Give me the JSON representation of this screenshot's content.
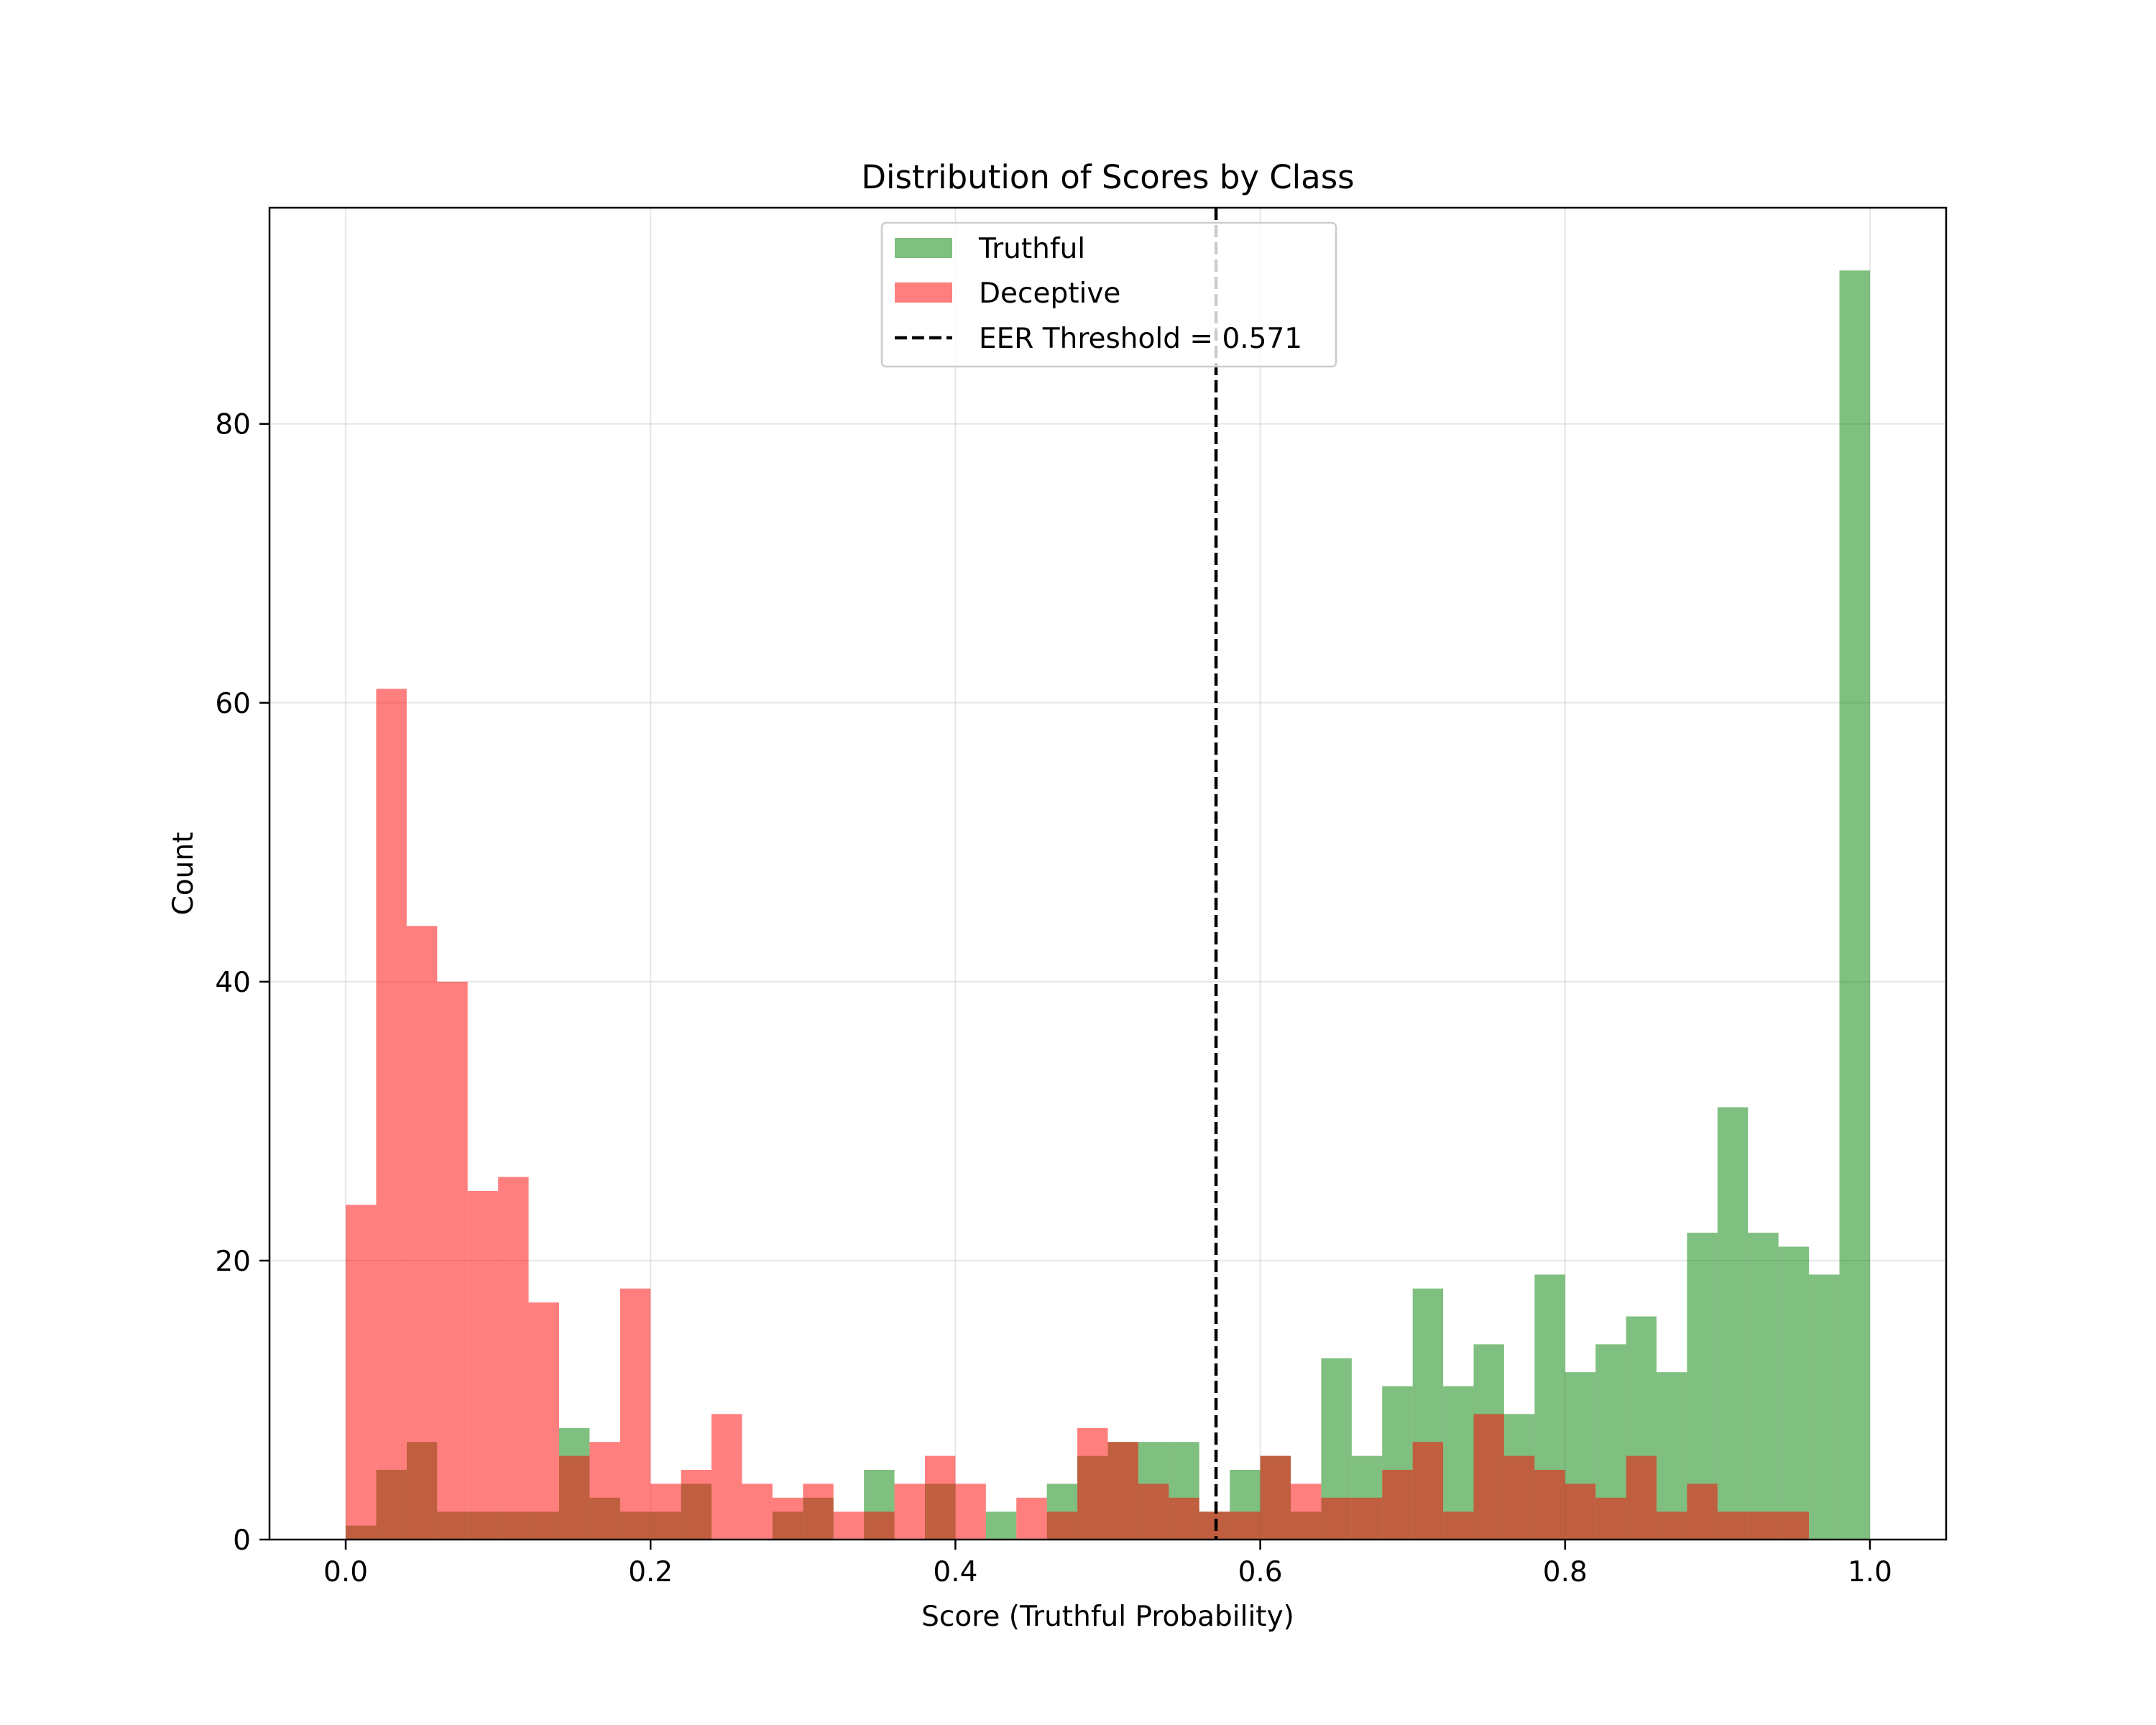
{
  "chart_data": {
    "type": "bar",
    "title": "Distribution of Scores by Class",
    "xlabel": "Score (Truthful Probability)",
    "ylabel": "Count",
    "xlim": [
      -0.05,
      1.05
    ],
    "ylim": [
      0,
      95.5
    ],
    "xticks": [
      0.0,
      0.2,
      0.4,
      0.6,
      0.8,
      1.0
    ],
    "xtick_labels": [
      "0.0",
      "0.2",
      "0.4",
      "0.6",
      "0.8",
      "1.0"
    ],
    "yticks": [
      0,
      20,
      40,
      60,
      80
    ],
    "ytick_labels": [
      "0",
      "20",
      "40",
      "60",
      "80"
    ],
    "grid": true,
    "legend_position": "top-center",
    "bin_edges": [
      0.0,
      0.02,
      0.04,
      0.06,
      0.08,
      0.1,
      0.12,
      0.14,
      0.16,
      0.18,
      0.2,
      0.22,
      0.24,
      0.26,
      0.28,
      0.3,
      0.32,
      0.34,
      0.36,
      0.38,
      0.4,
      0.42,
      0.44,
      0.46,
      0.48,
      0.5,
      0.52,
      0.54,
      0.56,
      0.58,
      0.6,
      0.62,
      0.64,
      0.66,
      0.68,
      0.7,
      0.72,
      0.74,
      0.76,
      0.78,
      0.8,
      0.82,
      0.84,
      0.86,
      0.88,
      0.9,
      0.92,
      0.94,
      0.96,
      0.98,
      1.0
    ],
    "series": [
      {
        "name": "Truthful",
        "color": "#008000",
        "alpha": 0.5,
        "values": [
          1,
          5,
          7,
          2,
          2,
          2,
          2,
          8,
          3,
          2,
          2,
          4,
          0,
          0,
          2,
          3,
          0,
          5,
          0,
          4,
          0,
          2,
          0,
          4,
          6,
          7,
          7,
          7,
          2,
          5,
          6,
          2,
          13,
          6,
          11,
          18,
          11,
          14,
          9,
          19,
          12,
          14,
          16,
          12,
          22,
          31,
          22,
          21,
          19,
          91
        ]
      },
      {
        "name": "Deceptive",
        "color": "#ff0000",
        "alpha": 0.5,
        "values": [
          24,
          61,
          44,
          40,
          25,
          26,
          17,
          6,
          7,
          18,
          4,
          5,
          9,
          4,
          3,
          4,
          2,
          2,
          4,
          6,
          4,
          0,
          3,
          2,
          8,
          7,
          4,
          3,
          2,
          2,
          6,
          4,
          3,
          3,
          5,
          7,
          2,
          9,
          6,
          5,
          4,
          3,
          6,
          2,
          4,
          2,
          2,
          2,
          0,
          0
        ]
      }
    ],
    "threshold": {
      "label": "EER Threshold = 0.571",
      "value": 0.571,
      "color": "#000000",
      "style": "dashed"
    }
  }
}
